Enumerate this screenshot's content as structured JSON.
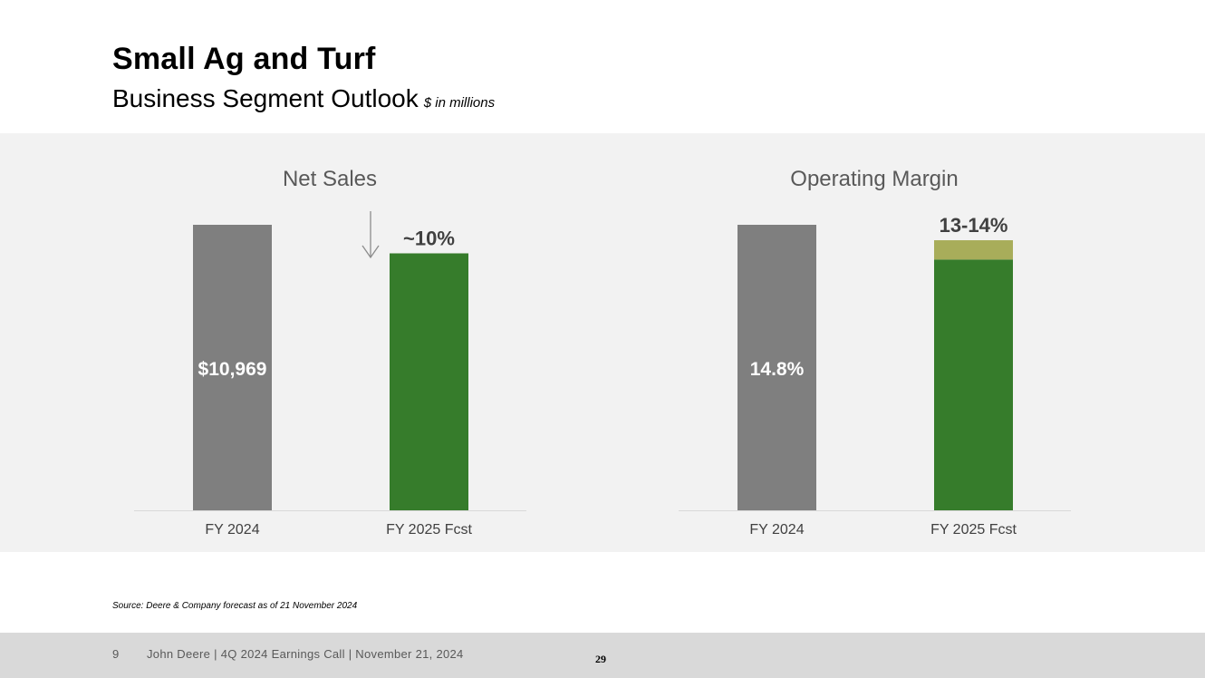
{
  "header": {
    "title": "Small Ag and Turf",
    "subtitle": "Business Segment Outlook",
    "units": "$ in millions"
  },
  "colors": {
    "actual_bar": "#7f7f7f",
    "forecast_bar": "#367c2b",
    "forecast_range": "#a8ad5a",
    "arrow": "#8c8c8c",
    "axis_line": "#d9d9d9"
  },
  "chart_data": [
    {
      "type": "bar",
      "title": "Net Sales",
      "categories": [
        "FY 2024",
        "FY 2025 Fcst"
      ],
      "values": [
        10969,
        9872
      ],
      "ylim": [
        0,
        10969
      ],
      "data_labels": [
        "$10,969",
        "~10%"
      ],
      "change_indicator": "down-arrow-icon"
    },
    {
      "type": "bar",
      "title": "Operating Margin",
      "categories": [
        "FY 2024",
        "FY 2025 Fcst"
      ],
      "values": [
        14.8,
        13
      ],
      "range": [
        13,
        14
      ],
      "ylim": [
        0,
        14.8
      ],
      "data_labels": [
        "14.8%",
        "13-14%"
      ]
    }
  ],
  "source": "Source: Deere & Company forecast as of 21 November 2024",
  "footer": {
    "page_number": "9",
    "text": "John Deere | 4Q 2024 Earnings Call | November 21, 2024",
    "slide_number": "29"
  }
}
